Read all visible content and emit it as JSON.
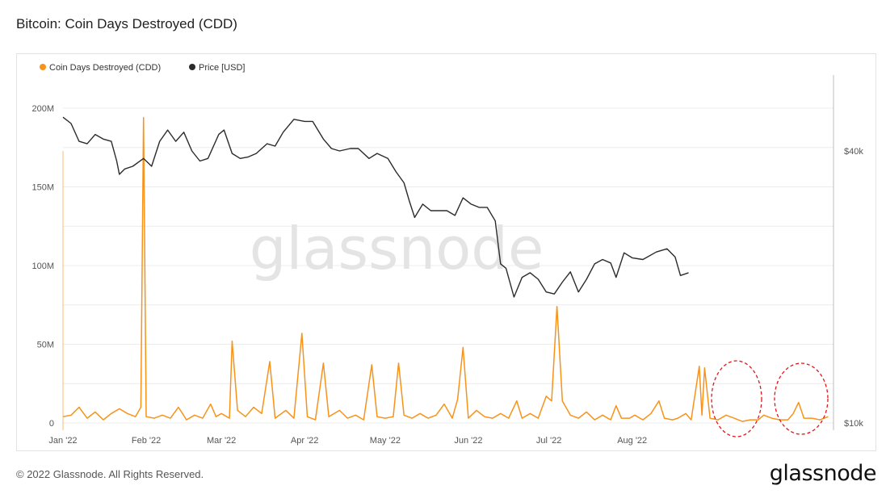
{
  "title": "Bitcoin: Coin Days Destroyed (CDD)",
  "footer": {
    "copyright": "© 2022 Glassnode. All Rights Reserved.",
    "logo": "glassnode"
  },
  "watermark": "glassnode",
  "colors": {
    "cdd": "#f7931a",
    "price": "#2b2b2b",
    "grid": "#ececec",
    "annotation": "#e0161a"
  },
  "chart_data": {
    "type": "line",
    "title": "Bitcoin: Coin Days Destroyed (CDD)",
    "grid": true,
    "legend_position": "top-left",
    "x_ticks": [
      "Jan '22",
      "Feb '22",
      "Mar '22",
      "Apr '22",
      "May '22",
      "Jun '22",
      "Jul '22",
      "Aug '22"
    ],
    "y_left": {
      "ticks": [
        "0",
        "50M",
        "100M",
        "150M",
        "200M"
      ],
      "range": [
        0,
        220000000
      ]
    },
    "y_right": {
      "ticks": [
        "$10k",
        "$40k"
      ],
      "scale": "log",
      "range": [
        10000,
        70000
      ]
    },
    "series": [
      {
        "name": "Coin Days Destroyed (CDD)",
        "axis": "left",
        "points": [
          [
            "2022-01-01",
            4000000
          ],
          [
            "2022-01-04",
            5000000
          ],
          [
            "2022-01-07",
            10000000
          ],
          [
            "2022-01-10",
            3000000
          ],
          [
            "2022-01-13",
            7000000
          ],
          [
            "2022-01-16",
            2000000
          ],
          [
            "2022-01-19",
            6000000
          ],
          [
            "2022-01-22",
            9000000
          ],
          [
            "2022-01-25",
            6000000
          ],
          [
            "2022-01-28",
            4000000
          ],
          [
            "2022-01-30",
            10000000
          ],
          [
            "2022-01-31",
            194000000
          ],
          [
            "2022-02-01",
            4000000
          ],
          [
            "2022-02-04",
            3000000
          ],
          [
            "2022-02-07",
            5000000
          ],
          [
            "2022-02-10",
            3000000
          ],
          [
            "2022-02-13",
            10000000
          ],
          [
            "2022-02-16",
            2000000
          ],
          [
            "2022-02-19",
            5000000
          ],
          [
            "2022-02-22",
            3000000
          ],
          [
            "2022-02-25",
            12000000
          ],
          [
            "2022-02-27",
            4000000
          ],
          [
            "2022-03-01",
            6000000
          ],
          [
            "2022-03-04",
            3000000
          ],
          [
            "2022-03-05",
            52000000
          ],
          [
            "2022-03-07",
            8000000
          ],
          [
            "2022-03-10",
            4000000
          ],
          [
            "2022-03-13",
            10000000
          ],
          [
            "2022-03-16",
            6000000
          ],
          [
            "2022-03-19",
            39000000
          ],
          [
            "2022-03-21",
            3000000
          ],
          [
            "2022-03-25",
            8000000
          ],
          [
            "2022-03-28",
            3000000
          ],
          [
            "2022-03-31",
            57000000
          ],
          [
            "2022-04-02",
            4000000
          ],
          [
            "2022-04-05",
            2000000
          ],
          [
            "2022-04-08",
            38000000
          ],
          [
            "2022-04-10",
            4000000
          ],
          [
            "2022-04-14",
            8000000
          ],
          [
            "2022-04-17",
            3000000
          ],
          [
            "2022-04-20",
            5000000
          ],
          [
            "2022-04-23",
            2000000
          ],
          [
            "2022-04-26",
            37000000
          ],
          [
            "2022-04-28",
            4000000
          ],
          [
            "2022-05-01",
            3000000
          ],
          [
            "2022-05-04",
            4000000
          ],
          [
            "2022-05-06",
            38000000
          ],
          [
            "2022-05-08",
            5000000
          ],
          [
            "2022-05-11",
            3000000
          ],
          [
            "2022-05-14",
            6000000
          ],
          [
            "2022-05-17",
            3000000
          ],
          [
            "2022-05-20",
            5000000
          ],
          [
            "2022-05-23",
            12000000
          ],
          [
            "2022-05-26",
            3000000
          ],
          [
            "2022-05-28",
            15000000
          ],
          [
            "2022-05-30",
            48000000
          ],
          [
            "2022-06-01",
            3000000
          ],
          [
            "2022-06-04",
            8000000
          ],
          [
            "2022-06-07",
            4000000
          ],
          [
            "2022-06-10",
            3000000
          ],
          [
            "2022-06-13",
            6000000
          ],
          [
            "2022-06-16",
            3000000
          ],
          [
            "2022-06-19",
            14000000
          ],
          [
            "2022-06-21",
            3000000
          ],
          [
            "2022-06-24",
            6000000
          ],
          [
            "2022-06-27",
            3000000
          ],
          [
            "2022-06-30",
            17000000
          ],
          [
            "2022-07-02",
            14000000
          ],
          [
            "2022-07-04",
            74000000
          ],
          [
            "2022-07-06",
            14000000
          ],
          [
            "2022-07-09",
            5000000
          ],
          [
            "2022-07-12",
            3000000
          ],
          [
            "2022-07-15",
            7000000
          ],
          [
            "2022-07-18",
            2000000
          ],
          [
            "2022-07-21",
            5000000
          ],
          [
            "2022-07-24",
            2000000
          ],
          [
            "2022-07-26",
            11000000
          ],
          [
            "2022-07-28",
            3000000
          ],
          [
            "2022-07-31",
            3000000
          ],
          [
            "2022-08-02",
            5000000
          ],
          [
            "2022-08-05",
            2000000
          ],
          [
            "2022-08-08",
            6000000
          ],
          [
            "2022-08-11",
            14000000
          ],
          [
            "2022-08-13",
            3000000
          ],
          [
            "2022-08-16",
            2000000
          ],
          [
            "2022-08-18",
            3000000
          ],
          [
            "2022-08-21",
            6000000
          ],
          [
            "2022-08-23",
            2000000
          ],
          [
            "2022-08-26",
            36000000
          ],
          [
            "2022-08-27",
            5000000
          ],
          [
            "2022-08-28",
            35000000
          ],
          [
            "2022-08-30",
            3000000
          ],
          [
            "2022-09-02",
            2000000
          ],
          [
            "2022-09-05",
            5000000
          ],
          [
            "2022-09-08",
            3000000
          ],
          [
            "2022-09-11",
            1000000
          ],
          [
            "2022-09-14",
            2000000
          ],
          [
            "2022-09-17",
            2000000
          ],
          [
            "2022-09-19",
            5000000
          ],
          [
            "2022-09-22",
            3000000
          ],
          [
            "2022-09-25",
            2000000
          ],
          [
            "2022-09-28",
            2000000
          ],
          [
            "2022-09-30",
            6000000
          ],
          [
            "2022-10-02",
            13000000
          ],
          [
            "2022-10-04",
            3000000
          ],
          [
            "2022-10-07",
            3000000
          ],
          [
            "2022-10-10",
            2000000
          ],
          [
            "2022-10-13",
            4000000
          ]
        ]
      },
      {
        "name": "Price [USD]",
        "axis": "right",
        "points": [
          [
            "2022-01-01",
            47500
          ],
          [
            "2022-01-04",
            46000
          ],
          [
            "2022-01-07",
            42000
          ],
          [
            "2022-01-10",
            41500
          ],
          [
            "2022-01-13",
            43500
          ],
          [
            "2022-01-16",
            42500
          ],
          [
            "2022-01-19",
            42000
          ],
          [
            "2022-01-21",
            38000
          ],
          [
            "2022-01-22",
            35500
          ],
          [
            "2022-01-24",
            36500
          ],
          [
            "2022-01-27",
            37000
          ],
          [
            "2022-01-31",
            38500
          ],
          [
            "2022-02-03",
            37000
          ],
          [
            "2022-02-06",
            42000
          ],
          [
            "2022-02-09",
            44500
          ],
          [
            "2022-02-12",
            42000
          ],
          [
            "2022-02-15",
            44000
          ],
          [
            "2022-02-18",
            40000
          ],
          [
            "2022-02-21",
            38000
          ],
          [
            "2022-02-24",
            38500
          ],
          [
            "2022-02-28",
            43500
          ],
          [
            "2022-03-02",
            44500
          ],
          [
            "2022-03-05",
            39500
          ],
          [
            "2022-03-08",
            38500
          ],
          [
            "2022-03-11",
            38800
          ],
          [
            "2022-03-14",
            39500
          ],
          [
            "2022-03-18",
            41500
          ],
          [
            "2022-03-21",
            41000
          ],
          [
            "2022-03-24",
            44000
          ],
          [
            "2022-03-28",
            47000
          ],
          [
            "2022-04-01",
            46500
          ],
          [
            "2022-04-04",
            46500
          ],
          [
            "2022-04-08",
            42500
          ],
          [
            "2022-04-11",
            40500
          ],
          [
            "2022-04-14",
            40000
          ],
          [
            "2022-04-18",
            40500
          ],
          [
            "2022-04-21",
            40500
          ],
          [
            "2022-04-25",
            38500
          ],
          [
            "2022-04-28",
            39500
          ],
          [
            "2022-05-02",
            38500
          ],
          [
            "2022-05-05",
            36000
          ],
          [
            "2022-05-08",
            34000
          ],
          [
            "2022-05-10",
            31000
          ],
          [
            "2022-05-12",
            28500
          ],
          [
            "2022-05-15",
            30500
          ],
          [
            "2022-05-18",
            29500
          ],
          [
            "2022-05-21",
            29500
          ],
          [
            "2022-05-24",
            29500
          ],
          [
            "2022-05-27",
            28800
          ],
          [
            "2022-05-30",
            31500
          ],
          [
            "2022-06-02",
            30500
          ],
          [
            "2022-06-05",
            30000
          ],
          [
            "2022-06-08",
            30000
          ],
          [
            "2022-06-11",
            28000
          ],
          [
            "2022-06-13",
            22500
          ],
          [
            "2022-06-15",
            22000
          ],
          [
            "2022-06-18",
            19000
          ],
          [
            "2022-06-21",
            21000
          ],
          [
            "2022-06-24",
            21500
          ],
          [
            "2022-06-27",
            20800
          ],
          [
            "2022-06-30",
            19500
          ],
          [
            "2022-07-03",
            19300
          ],
          [
            "2022-07-06",
            20500
          ],
          [
            "2022-07-09",
            21600
          ],
          [
            "2022-07-12",
            19500
          ],
          [
            "2022-07-15",
            20800
          ],
          [
            "2022-07-18",
            22500
          ],
          [
            "2022-07-21",
            23000
          ],
          [
            "2022-07-24",
            22600
          ],
          [
            "2022-07-26",
            21000
          ],
          [
            "2022-07-29",
            23800
          ],
          [
            "2022-08-01",
            23200
          ],
          [
            "2022-08-05",
            23000
          ],
          [
            "2022-08-10",
            23900
          ],
          [
            "2022-08-14",
            24300
          ],
          [
            "2022-08-17",
            23300
          ],
          [
            "2022-08-19",
            21200
          ],
          [
            "2022-08-22",
            21500
          ]
        ]
      }
    ],
    "annotations": [
      "dashed red circle around the two CDD spikes in late Jul '22",
      "dashed red circle around the CDD rise in Aug '22"
    ]
  }
}
